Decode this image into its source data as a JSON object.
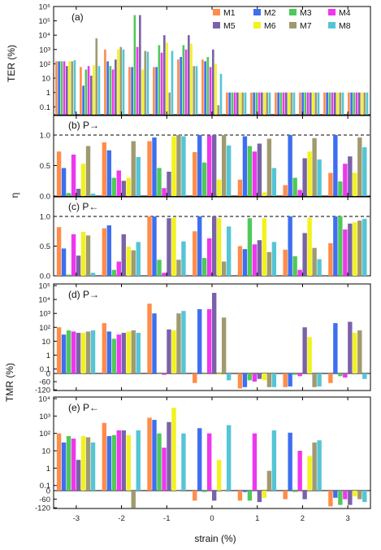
{
  "colors": [
    "#ff8c4a",
    "#3d6ff0",
    "#4fc95a",
    "#ee37ee",
    "#7a62a8",
    "#f2f21e",
    "#a09a70",
    "#55c5d6"
  ],
  "legend": [
    "M1",
    "M2",
    "M3",
    "M4",
    "M5",
    "M6",
    "M7",
    "M8"
  ],
  "chart_data": [
    {
      "type": "bar",
      "panel": "(a)",
      "ylabel": "TER (%)",
      "scale": "log",
      "yticks": [
        "0.1",
        "1",
        "10",
        "10²",
        "10³",
        "10⁴",
        "10⁵",
        "10⁶"
      ],
      "categories": [
        "-3",
        "-2.5",
        "-2",
        "-1.5",
        "-1",
        "-0.5",
        "0",
        "0.5",
        "1",
        "1.5",
        "2",
        "2.5",
        "3"
      ],
      "series": [
        {
          "name": "M1",
          "values": [
            150,
            60,
            1000,
            60,
            60,
            200,
            200,
            1,
            1,
            1,
            1,
            1,
            1
          ]
        },
        {
          "name": "M2",
          "values": [
            150,
            3,
            150,
            60,
            60,
            300,
            150,
            1,
            1,
            1,
            1,
            1,
            1
          ]
        },
        {
          "name": "M3",
          "values": [
            150,
            40,
            70,
            250000,
            2000,
            2000,
            300,
            1,
            1,
            1,
            1,
            1,
            1
          ]
        },
        {
          "name": "M4",
          "values": [
            150,
            70,
            40,
            1500,
            600,
            1000,
            60,
            1,
            1,
            1,
            1,
            1,
            1
          ]
        },
        {
          "name": "M5",
          "values": [
            70,
            15,
            200,
            250000,
            10000,
            10000,
            1000,
            1,
            1,
            1,
            1,
            1,
            1
          ]
        },
        {
          "name": "M6",
          "values": [
            150,
            80,
            1000,
            40,
            3000,
            2500,
            100,
            1,
            1,
            1,
            1,
            1,
            1
          ]
        },
        {
          "name": "M7",
          "values": [
            150,
            6000,
            1500,
            800,
            1,
            70,
            0.13,
            1,
            1,
            1,
            1,
            1,
            1
          ]
        },
        {
          "name": "M8",
          "values": [
            180,
            70,
            1000,
            700,
            800,
            70,
            20,
            1,
            1,
            1,
            1,
            1,
            1
          ]
        }
      ]
    },
    {
      "type": "bar",
      "panel": "(b) P→",
      "ylabel": "η",
      "yticks": [
        "0.0",
        "0.5",
        "1.0"
      ],
      "series": [
        {
          "name": "M1",
          "values": [
            0.73,
            0.88,
            0.9,
            0.72,
            0.27,
            0.18,
            0.38
          ]
        },
        {
          "name": "M2",
          "values": [
            0.46,
            0.75,
            0.96,
            1.0,
            0.98,
            1.0,
            1.0
          ]
        },
        {
          "name": "M3",
          "values": [
            0.05,
            0.3,
            0.46,
            0.55,
            0.82,
            0.3,
            0.24
          ]
        },
        {
          "name": "M4",
          "values": [
            0.68,
            0.42,
            0.13,
            0.99,
            0.73,
            0.1,
            0.53
          ]
        },
        {
          "name": "M5",
          "values": [
            0.12,
            0.25,
            0.4,
            1.0,
            0.86,
            0.62,
            0.65
          ]
        },
        {
          "name": "M6",
          "values": [
            0.53,
            0.3,
            0.98,
            0.27,
            0.06,
            0.73,
            0.38
          ]
        },
        {
          "name": "M7",
          "values": [
            0.82,
            0.9,
            1.0,
            1.0,
            0.94,
            0.95,
            0.96
          ]
        },
        {
          "name": "M8",
          "values": [
            0.04,
            0.64,
            0.98,
            0.83,
            0.46,
            0.6,
            0.8
          ]
        }
      ]
    },
    {
      "type": "bar",
      "panel": "(c) P←",
      "ylabel": "η",
      "yticks": [
        "0.0",
        "0.5",
        "1.0"
      ],
      "series": [
        {
          "name": "M1",
          "values": [
            0.82,
            0.8,
            1.0,
            0.75,
            0.5,
            0.44,
            0.55
          ]
        },
        {
          "name": "M2",
          "values": [
            0.46,
            0.85,
            1.0,
            1.0,
            0.45,
            1.0,
            1.0
          ]
        },
        {
          "name": "M3",
          "values": [
            0.02,
            0.1,
            0.27,
            0.3,
            0.97,
            0.33,
            1.0
          ]
        },
        {
          "name": "M4",
          "values": [
            0.7,
            0.24,
            0.05,
            0.63,
            0.53,
            0.1,
            0.78
          ]
        },
        {
          "name": "M5",
          "values": [
            0.34,
            0.7,
            0.97,
            1.0,
            0.6,
            0.72,
            0.88
          ]
        },
        {
          "name": "M6",
          "values": [
            0.74,
            0.49,
            0.98,
            0.97,
            0.97,
            0.98,
            0.9
          ]
        },
        {
          "name": "M7",
          "values": [
            0.68,
            0.43,
            0.27,
            0.24,
            0.4,
            0.47,
            0.93
          ]
        },
        {
          "name": "M8",
          "values": [
            0.05,
            0.57,
            0.58,
            0.83,
            0.57,
            0.28,
            0.96
          ]
        }
      ]
    },
    {
      "type": "bar",
      "panel": "(d) P→",
      "ylabel": "TMR (%)",
      "scale": "symlog",
      "yticks": [
        "-60",
        "-120",
        "0",
        "0.1",
        "1",
        "10",
        "10²",
        "10³",
        "10⁴",
        "10⁵"
      ],
      "series": [
        {
          "name": "M1",
          "values": [
            100,
            200,
            5000,
            -70,
            -110,
            -100,
            -70
          ]
        },
        {
          "name": "M2",
          "values": [
            30,
            50,
            1000,
            2000,
            -100,
            -95,
            200
          ]
        },
        {
          "name": "M3",
          "values": [
            60,
            15,
            -5,
            -5,
            -50,
            -10,
            -20
          ]
        },
        {
          "name": "M4",
          "values": [
            50,
            30,
            -10,
            2000,
            -60,
            -20,
            -30
          ]
        },
        {
          "name": "M5",
          "values": [
            40,
            40,
            70,
            30000,
            -40,
            100,
            250
          ]
        },
        {
          "name": "M6",
          "values": [
            40,
            50,
            60,
            -10,
            -50,
            20,
            40
          ]
        },
        {
          "name": "M7",
          "values": [
            50,
            60,
            1000,
            500,
            -100,
            -100,
            60
          ]
        },
        {
          "name": "M8",
          "values": [
            60,
            40,
            1500,
            -50,
            -100,
            -95,
            -40
          ]
        }
      ]
    },
    {
      "type": "bar",
      "panel": "(e) P←",
      "ylabel": "TMR (%)",
      "scale": "symlog",
      "xlabel": "strain (%)",
      "yticks": [
        "-60",
        "-120",
        "0",
        "0.1",
        "1",
        "10",
        "10²",
        "10³",
        "10⁴"
      ],
      "xticks": [
        "-3",
        "-2",
        "-1",
        "0",
        "1",
        "2",
        "3"
      ],
      "series": [
        {
          "name": "M1",
          "values": [
            100,
            400,
            800,
            -70,
            -70,
            -60,
            -110
          ]
        },
        {
          "name": "M2",
          "values": [
            30,
            70,
            600,
            200,
            -10,
            110,
            -50
          ]
        },
        {
          "name": "M3",
          "values": [
            70,
            80,
            100,
            -10,
            -70,
            -10,
            -100
          ]
        },
        {
          "name": "M4",
          "values": [
            50,
            150,
            15,
            100,
            100,
            10,
            -60
          ]
        },
        {
          "name": "M5",
          "values": [
            3,
            150,
            450,
            -70,
            -80,
            -60,
            -100
          ]
        },
        {
          "name": "M6",
          "values": [
            70,
            80,
            3000,
            3,
            -50,
            5,
            -40
          ]
        },
        {
          "name": "M7",
          "values": [
            60,
            -120,
            -5,
            -5,
            0.7,
            30,
            -60
          ]
        },
        {
          "name": "M8",
          "values": [
            30,
            150,
            100,
            300,
            150,
            40,
            -80
          ]
        }
      ]
    }
  ]
}
